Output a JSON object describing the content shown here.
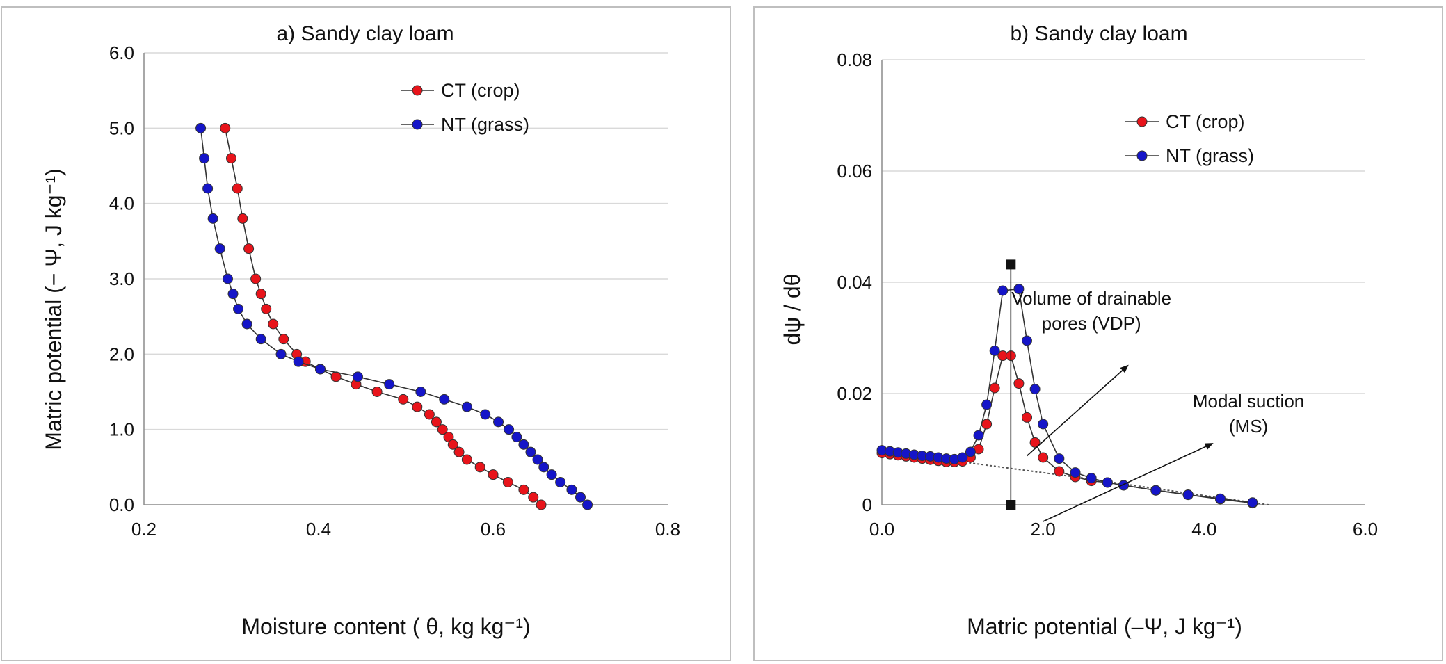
{
  "colors": {
    "ct": "#e8141b",
    "nt": "#1515c8",
    "line": "#333333",
    "grid": "#d9d9d9",
    "frame": "#bfbfbf"
  },
  "chart_data": [
    {
      "type": "line",
      "title": "a) Sandy clay loam",
      "xlabel": "Moisture content ( θ, kg kg⁻¹)",
      "ylabel": "Matric potential (− Ψ, J kg⁻¹)",
      "xlim": [
        0.2,
        0.8
      ],
      "ylim": [
        0,
        6
      ],
      "xticks": [
        "0.2",
        "0.4",
        "0.6",
        "0.8"
      ],
      "yticks": [
        "0.0",
        "1.0",
        "2.0",
        "3.0",
        "4.0",
        "5.0",
        "6.0"
      ],
      "grid": "horizontal",
      "legend_position": "top-right",
      "series": [
        {
          "name": "CT (crop)",
          "color_key": "ct",
          "points": [
            [
              0.293,
              5.0
            ],
            [
              0.3,
              4.6
            ],
            [
              0.307,
              4.2
            ],
            [
              0.313,
              3.8
            ],
            [
              0.32,
              3.4
            ],
            [
              0.328,
              3.0
            ],
            [
              0.334,
              2.8
            ],
            [
              0.34,
              2.6
            ],
            [
              0.348,
              2.4
            ],
            [
              0.36,
              2.2
            ],
            [
              0.375,
              2.0
            ],
            [
              0.385,
              1.9
            ],
            [
              0.402,
              1.8
            ],
            [
              0.42,
              1.7
            ],
            [
              0.443,
              1.6
            ],
            [
              0.467,
              1.5
            ],
            [
              0.497,
              1.4
            ],
            [
              0.513,
              1.3
            ],
            [
              0.527,
              1.2
            ],
            [
              0.535,
              1.1
            ],
            [
              0.542,
              1.0
            ],
            [
              0.549,
              0.9
            ],
            [
              0.554,
              0.8
            ],
            [
              0.561,
              0.7
            ],
            [
              0.57,
              0.6
            ],
            [
              0.585,
              0.5
            ],
            [
              0.6,
              0.4
            ],
            [
              0.617,
              0.3
            ],
            [
              0.635,
              0.2
            ],
            [
              0.646,
              0.1
            ],
            [
              0.655,
              0.0
            ]
          ]
        },
        {
          "name": "NT (grass)",
          "color_key": "nt",
          "points": [
            [
              0.265,
              5.0
            ],
            [
              0.269,
              4.6
            ],
            [
              0.273,
              4.2
            ],
            [
              0.279,
              3.8
            ],
            [
              0.287,
              3.4
            ],
            [
              0.296,
              3.0
            ],
            [
              0.302,
              2.8
            ],
            [
              0.308,
              2.6
            ],
            [
              0.318,
              2.4
            ],
            [
              0.334,
              2.2
            ],
            [
              0.357,
              2.0
            ],
            [
              0.377,
              1.9
            ],
            [
              0.402,
              1.8
            ],
            [
              0.445,
              1.7
            ],
            [
              0.481,
              1.6
            ],
            [
              0.517,
              1.5
            ],
            [
              0.544,
              1.4
            ],
            [
              0.57,
              1.3
            ],
            [
              0.591,
              1.2
            ],
            [
              0.606,
              1.1
            ],
            [
              0.618,
              1.0
            ],
            [
              0.627,
              0.9
            ],
            [
              0.635,
              0.8
            ],
            [
              0.643,
              0.7
            ],
            [
              0.651,
              0.6
            ],
            [
              0.658,
              0.5
            ],
            [
              0.667,
              0.4
            ],
            [
              0.677,
              0.3
            ],
            [
              0.69,
              0.2
            ],
            [
              0.7,
              0.1
            ],
            [
              0.708,
              0.0
            ]
          ]
        }
      ]
    },
    {
      "type": "line",
      "title": "b) Sandy clay loam",
      "xlabel": "Matric potential  (–Ψ, J kg⁻¹)",
      "ylabel": "dψ / dθ",
      "xlim": [
        0,
        6
      ],
      "ylim": [
        0,
        0.08
      ],
      "xticks": [
        "0.0",
        "2.0",
        "4.0",
        "6.0"
      ],
      "yticks": [
        "0",
        "0.02",
        "0.04",
        "0.06",
        "0.08"
      ],
      "grid": "horizontal",
      "legend_position": "top-right",
      "series": [
        {
          "name": "CT (crop)",
          "color_key": "ct",
          "points": [
            [
              0.0,
              0.0093
            ],
            [
              0.1,
              0.0091
            ],
            [
              0.2,
              0.0089
            ],
            [
              0.3,
              0.0087
            ],
            [
              0.4,
              0.0085
            ],
            [
              0.5,
              0.0083
            ],
            [
              0.6,
              0.0081
            ],
            [
              0.7,
              0.0079
            ],
            [
              0.8,
              0.0077
            ],
            [
              0.9,
              0.0077
            ],
            [
              1.0,
              0.0078
            ],
            [
              1.1,
              0.0085
            ],
            [
              1.2,
              0.01
            ],
            [
              1.3,
              0.0145
            ],
            [
              1.4,
              0.021
            ],
            [
              1.5,
              0.0268
            ],
            [
              1.6,
              0.0268
            ],
            [
              1.7,
              0.0218
            ],
            [
              1.8,
              0.0157
            ],
            [
              1.9,
              0.0112
            ],
            [
              2.0,
              0.0085
            ],
            [
              2.2,
              0.006
            ],
            [
              2.4,
              0.005
            ],
            [
              2.6,
              0.0043
            ],
            [
              2.8,
              0.004
            ],
            [
              3.0,
              0.0035
            ],
            [
              3.4,
              0.0026
            ],
            [
              3.8,
              0.0018
            ],
            [
              4.2,
              0.001
            ],
            [
              4.6,
              0.0003
            ]
          ]
        },
        {
          "name": "NT (grass)",
          "color_key": "nt",
          "points": [
            [
              0.0,
              0.0098
            ],
            [
              0.1,
              0.0096
            ],
            [
              0.2,
              0.0094
            ],
            [
              0.3,
              0.0092
            ],
            [
              0.4,
              0.009
            ],
            [
              0.5,
              0.0088
            ],
            [
              0.6,
              0.0087
            ],
            [
              0.7,
              0.0085
            ],
            [
              0.8,
              0.0083
            ],
            [
              0.9,
              0.0082
            ],
            [
              1.0,
              0.0085
            ],
            [
              1.1,
              0.0095
            ],
            [
              1.2,
              0.0125
            ],
            [
              1.3,
              0.018
            ],
            [
              1.4,
              0.0277
            ],
            [
              1.5,
              0.0385
            ],
            [
              1.7,
              0.0388
            ],
            [
              1.8,
              0.0295
            ],
            [
              1.9,
              0.0208
            ],
            [
              2.0,
              0.0145
            ],
            [
              2.2,
              0.0083
            ],
            [
              2.4,
              0.0058
            ],
            [
              2.6,
              0.0048
            ],
            [
              2.8,
              0.004
            ],
            [
              3.0,
              0.0035
            ],
            [
              3.4,
              0.0026
            ],
            [
              3.8,
              0.0018
            ],
            [
              4.2,
              0.0011
            ],
            [
              4.6,
              0.0004
            ]
          ]
        }
      ],
      "modal_suction_x": 1.6,
      "modal_peak_y": 0.0432,
      "baseline": [
        [
          0.0,
          0.0093
        ],
        [
          1.0,
          0.0077
        ],
        [
          2.4,
          0.005
        ],
        [
          4.8,
          0.0
        ]
      ],
      "annotations": [
        {
          "lines": [
            "Volume of drainable",
            "pores (VDP)"
          ],
          "anchor_data": [
            2.6,
            0.036
          ],
          "arrow_from": [
            1.8,
            0.0088
          ],
          "arrow_to": [
            3.05,
            0.025
          ]
        },
        {
          "lines": [
            "Modal suction",
            "(MS)"
          ],
          "anchor_data": [
            4.55,
            0.0175
          ],
          "arrow_from": [
            2.0,
            -0.003
          ],
          "arrow_to": [
            4.1,
            0.011
          ]
        }
      ]
    }
  ]
}
